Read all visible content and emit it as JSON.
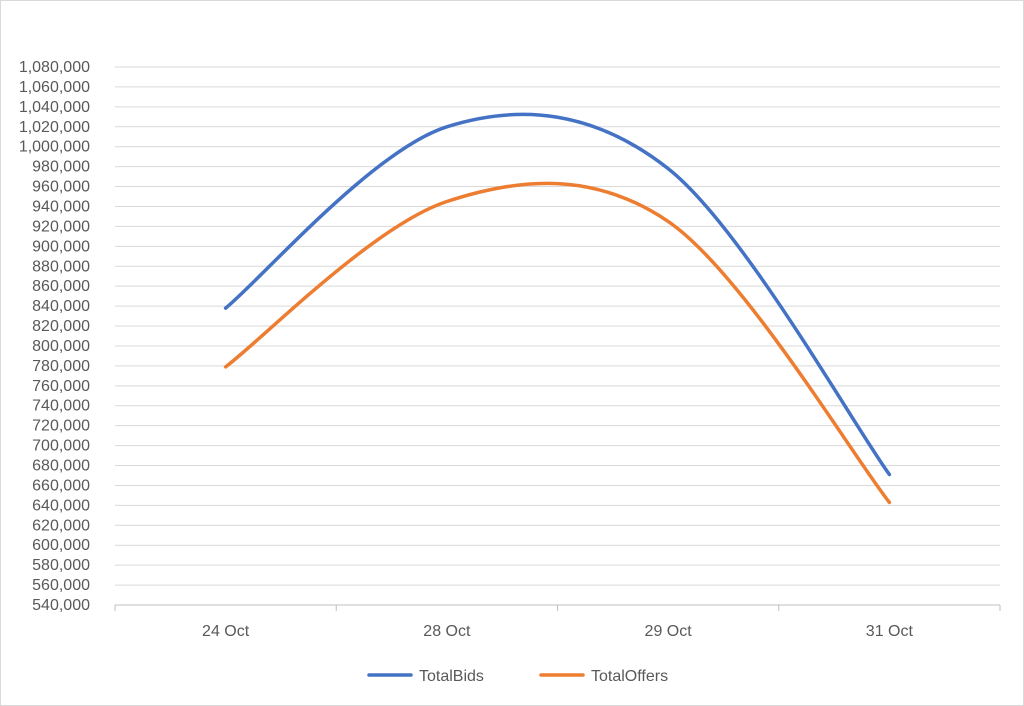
{
  "chart_data": {
    "type": "line",
    "categories": [
      "24 Oct",
      "28 Oct",
      "29 Oct",
      "31 Oct"
    ],
    "series": [
      {
        "name": "TotalBids",
        "values": [
          838000,
          1020000,
          978000,
          671000
        ],
        "color": "#4472c4"
      },
      {
        "name": "TotalOffers",
        "values": [
          779000,
          945000,
          925000,
          643000
        ],
        "color": "#ed7d31"
      }
    ],
    "ylim": [
      540000,
      1080000
    ],
    "ystep": 20000,
    "grid": true,
    "legend": "bottom",
    "smooth": true
  }
}
